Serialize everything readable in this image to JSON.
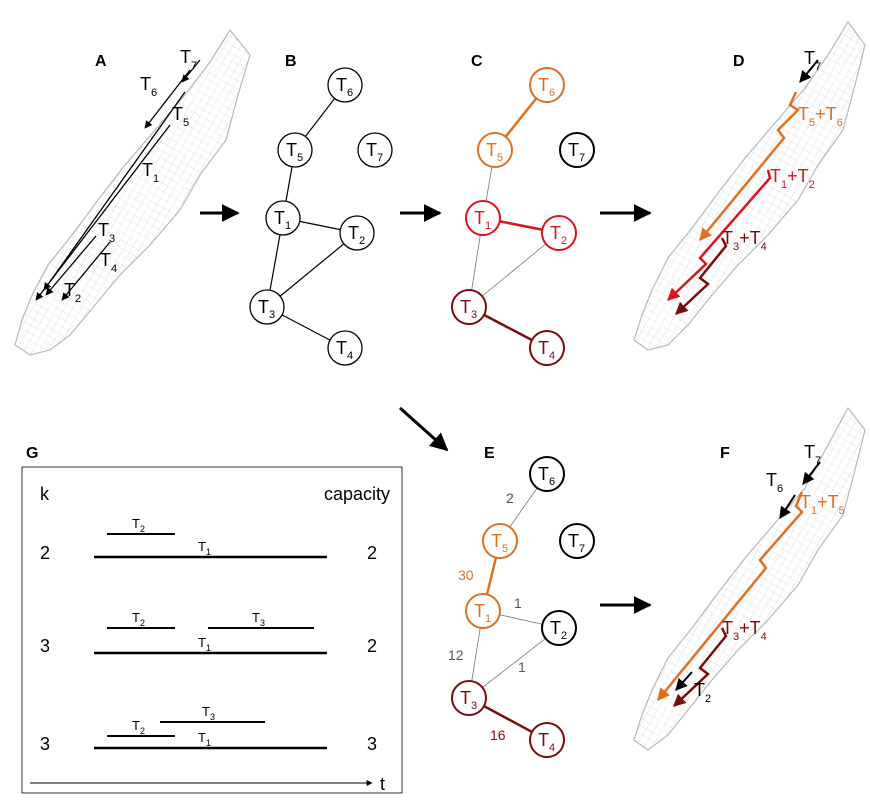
{
  "panels": {
    "A": "A",
    "B": "B",
    "C": "C",
    "D": "D",
    "E": "E",
    "F": "F",
    "G": "G"
  },
  "trip_letter": "T",
  "trip_numbers": [
    "1",
    "2",
    "3",
    "4",
    "5",
    "6",
    "7"
  ],
  "plus": "+",
  "colors": {
    "orange": "#e07020",
    "red": "#d8141c",
    "dark_red": "#7a0c0c",
    "black": "#000000",
    "map_gray": "#c8c8c8"
  },
  "panel_E_weights": {
    "w56": "2",
    "w15": "30",
    "w12": "1",
    "w13": "12",
    "w23": "1",
    "w34": "16"
  },
  "panel_G": {
    "k_header": "k",
    "capacity_header": "capacity",
    "rows": [
      {
        "k": "2",
        "capacity": "2"
      },
      {
        "k": "3",
        "capacity": "2"
      },
      {
        "k": "3",
        "capacity": "3"
      }
    ],
    "axis_label": "t"
  }
}
